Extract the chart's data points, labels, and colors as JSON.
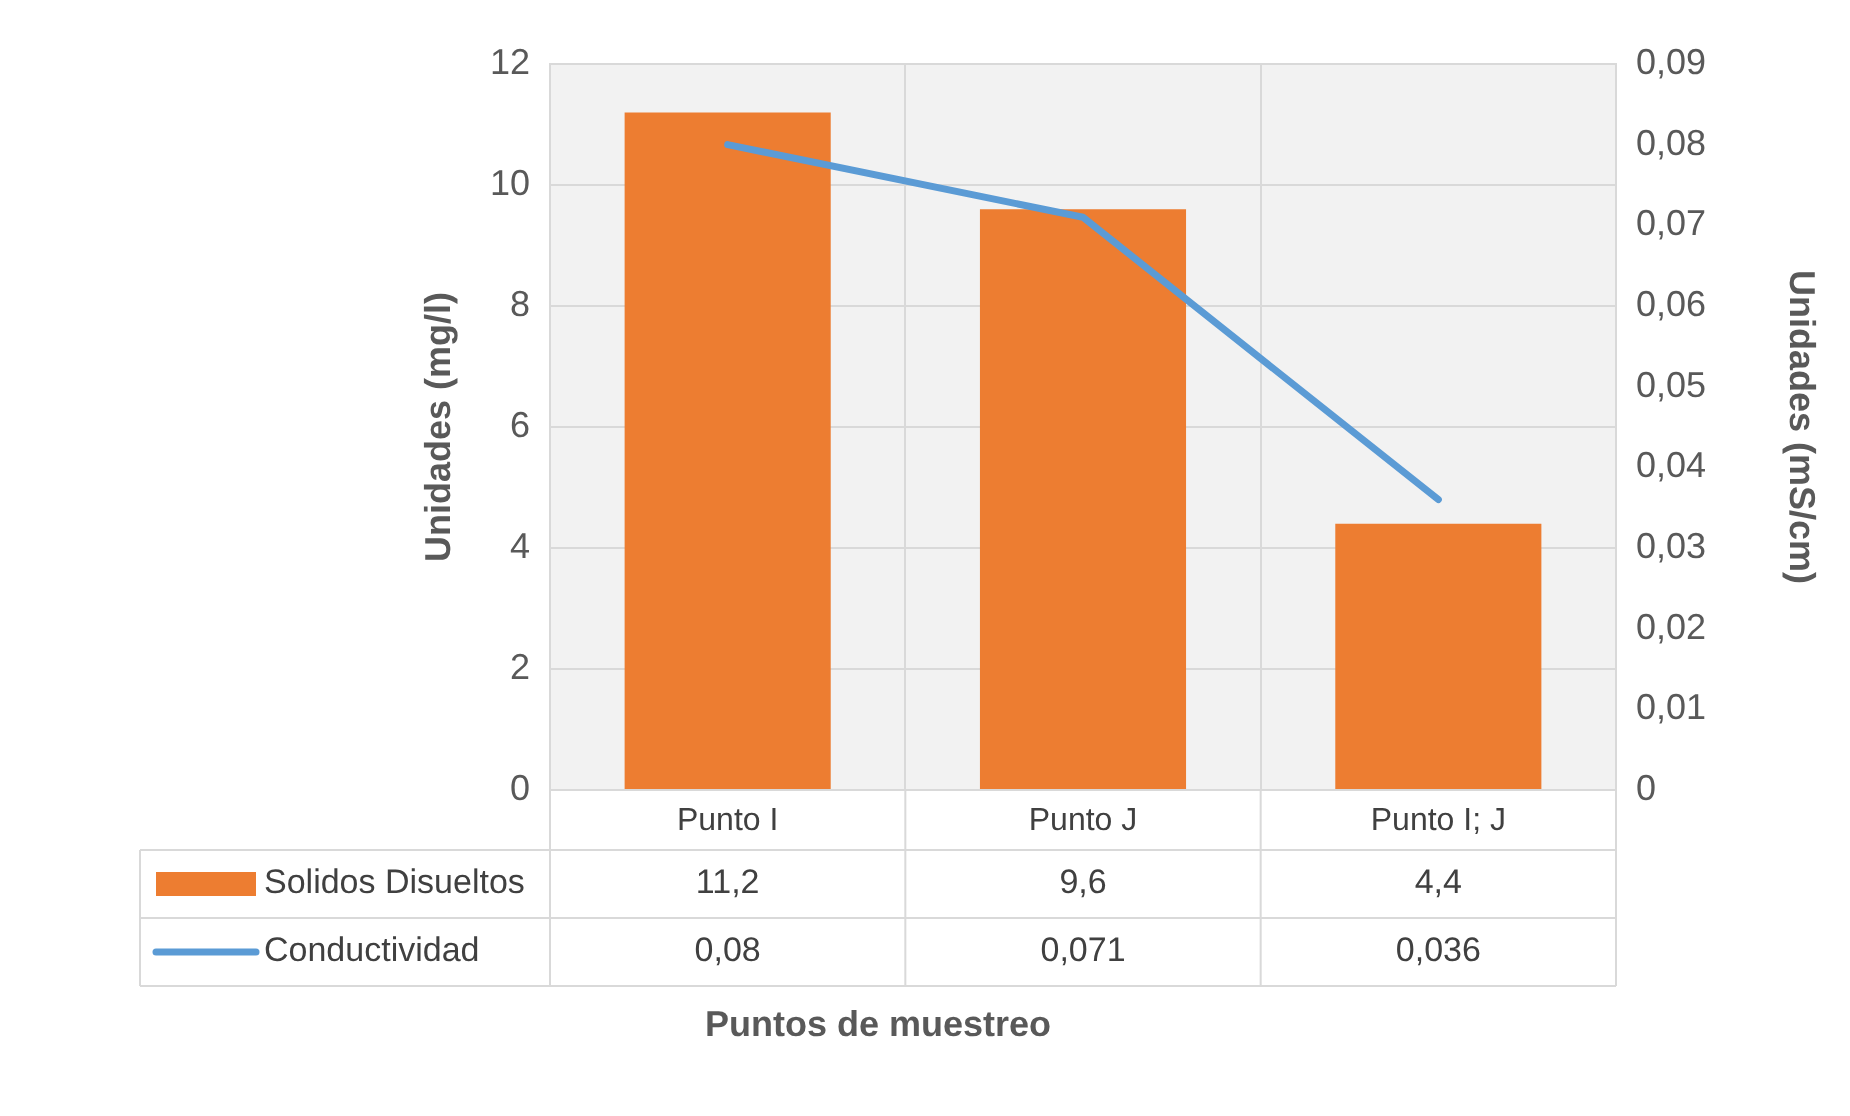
{
  "chart_data": {
    "type": "bar",
    "xlabel": "Puntos de muestreo",
    "ylabel": "Unidades (mg/l)",
    "y2label": "Unidades (mS/cm)",
    "categories": [
      "Punto I",
      "Punto J",
      "Punto I; J"
    ],
    "series": [
      {
        "name": "Solidos Disueltos",
        "color": "#ed7d31",
        "values": [
          11.2,
          9.6,
          4.4
        ],
        "value_labels": [
          "11,2",
          "9,6",
          "4,4"
        ]
      },
      {
        "name": "Conductividad",
        "type": "line",
        "axis": "y2",
        "color": "#5b9bd5",
        "values": [
          0.08,
          0.071,
          0.036
        ],
        "value_labels": [
          "0,08",
          "0,071",
          "0,036"
        ]
      }
    ],
    "ylim": [
      0,
      12
    ],
    "yticks": [
      0,
      2,
      4,
      6,
      8,
      10,
      12
    ],
    "y2lim": [
      0,
      0.09
    ],
    "y2ticks": [
      {
        "value": 0,
        "label": "0"
      },
      {
        "value": 0.01,
        "label": "0,01"
      },
      {
        "value": 0.02,
        "label": "0,02"
      },
      {
        "value": 0.03,
        "label": "0,03"
      },
      {
        "value": 0.04,
        "label": "0,04"
      },
      {
        "value": 0.05,
        "label": "0,05"
      },
      {
        "value": 0.06,
        "label": "0,06"
      },
      {
        "value": 0.07,
        "label": "0,07"
      },
      {
        "value": 0.08,
        "label": "0,08"
      },
      {
        "value": 0.09,
        "label": "0,09"
      }
    ],
    "grid": true,
    "legend": "bottom",
    "marker": "none",
    "line_style": "solid"
  }
}
